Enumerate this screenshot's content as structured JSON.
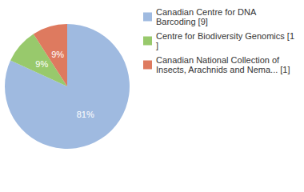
{
  "chart_data": {
    "type": "pie",
    "categories": [
      "Canadian Centre for DNA Barcoding [9]",
      "Centre for Biodiversity Genomics [1]",
      "Canadian National Collection of Insects, Arachnids and Nema... [1]"
    ],
    "values": [
      81,
      9,
      9
    ],
    "value_labels": [
      "81%",
      "9%",
      "9%"
    ],
    "colors": [
      "#9fbae0",
      "#98c96c",
      "#de7a5f"
    ],
    "data_labels": true,
    "legend": "top-right"
  }
}
